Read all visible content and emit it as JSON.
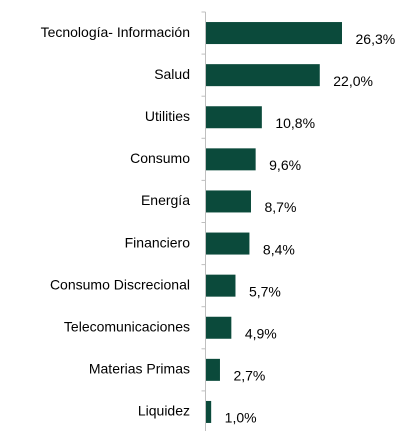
{
  "chart_data": {
    "type": "bar",
    "orientation": "horizontal",
    "color": "#0b4a3b",
    "categories": [
      "Tecnología- Información",
      "Salud",
      "Utilities",
      "Consumo",
      "Energía",
      "Financiero",
      "Consumo Discrecional",
      "Telecomunicaciones",
      "Materias Primas",
      "Liquidez"
    ],
    "values": [
      26.3,
      22.0,
      10.8,
      9.6,
      8.7,
      8.4,
      5.7,
      4.9,
      2.7,
      1.0
    ],
    "value_labels": [
      "26,3%",
      "22,0%",
      "10,8%",
      "9,6%",
      "8,7%",
      "8,4%",
      "5,7%",
      "4,9%",
      "2,7%",
      "1,0%"
    ]
  }
}
